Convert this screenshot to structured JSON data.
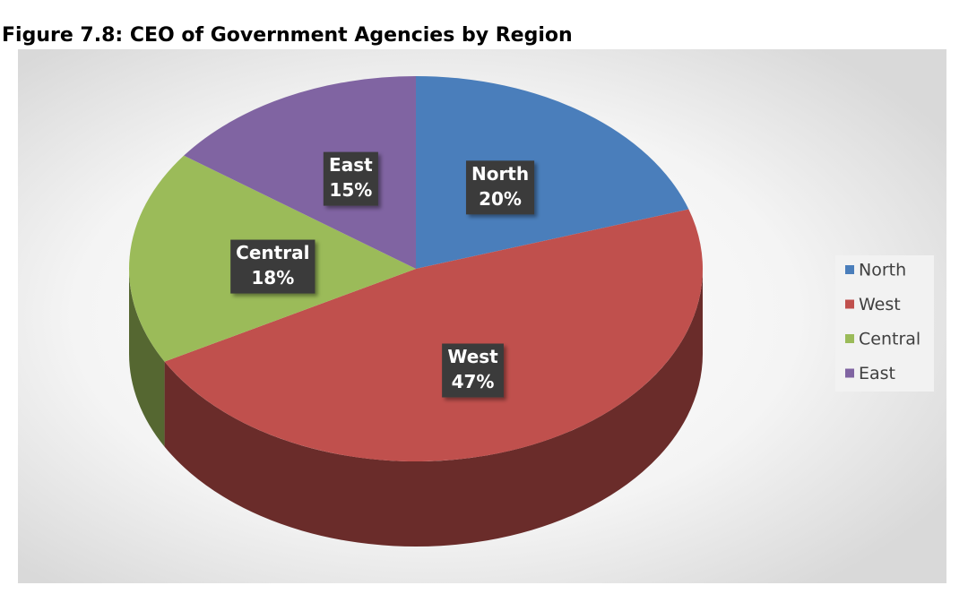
{
  "chart_data": {
    "type": "pie",
    "title": "Figure 7.8: CEO of Government Agencies by Region",
    "categories": [
      "North",
      "West",
      "Central",
      "East"
    ],
    "values": [
      20,
      47,
      18,
      15
    ],
    "value_labels": [
      "20%",
      "47%",
      "18%",
      "15%"
    ],
    "colors": [
      "#4a7ebb",
      "#c0504d",
      "#9bbb59",
      "#8064a2"
    ],
    "legend": "right"
  }
}
